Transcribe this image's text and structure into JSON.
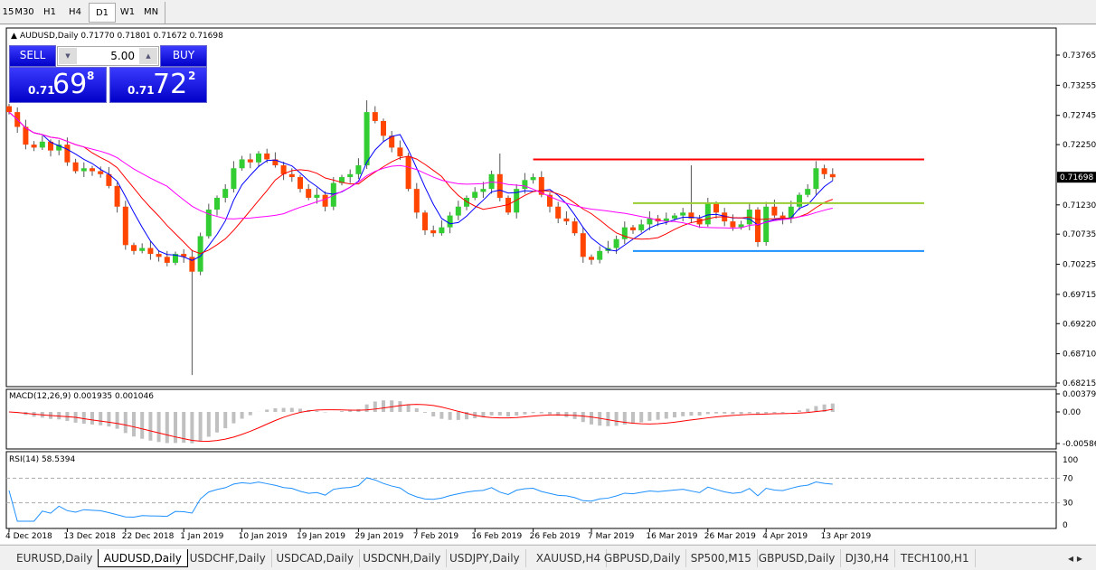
{
  "timeframes": [
    "15",
    "M30",
    "H1",
    "H4",
    "D1",
    "W1",
    "MN"
  ],
  "active_timeframe": "D1",
  "chart": {
    "title": "AUDUSD,Daily",
    "ohlc": "0.71770 0.71801 0.71672 0.71698",
    "current_price": "0.71698"
  },
  "trade_panel": {
    "sell_label": "SELL",
    "buy_label": "BUY",
    "lot": "5.00",
    "sell_small": "0.71",
    "sell_main": "69",
    "sell_pip": "8",
    "buy_small": "0.71",
    "buy_main": "72",
    "buy_pip": "2"
  },
  "macd": {
    "label": "MACD(12,26,9) 0.001935 0.001046",
    "ticks": [
      "0.003793",
      "0.00",
      "-0.005864"
    ]
  },
  "rsi": {
    "label": "RSI(14) 58.5394",
    "ticks": [
      "100",
      "70",
      "30",
      "0"
    ]
  },
  "price_ticks": [
    "0.73765",
    "0.73255",
    "0.72745",
    "0.72250",
    "0.71230",
    "0.70735",
    "0.70225",
    "0.69715",
    "0.69220",
    "0.68710",
    "0.68215"
  ],
  "date_labels": [
    {
      "i": 0,
      "t": "4 Dec 2018"
    },
    {
      "i": 7,
      "t": "13 Dec 2018"
    },
    {
      "i": 14,
      "t": "22 Dec 2018"
    },
    {
      "i": 21,
      "t": "1 Jan 2019"
    },
    {
      "i": 28,
      "t": "10 Jan 2019"
    },
    {
      "i": 35,
      "t": "19 Jan 2019"
    },
    {
      "i": 42,
      "t": "29 Jan 2019"
    },
    {
      "i": 49,
      "t": "7 Feb 2019"
    },
    {
      "i": 56,
      "t": "16 Feb 2019"
    },
    {
      "i": 63,
      "t": "26 Feb 2019"
    },
    {
      "i": 70,
      "t": "7 Mar 2019"
    },
    {
      "i": 77,
      "t": "16 Mar 2019"
    },
    {
      "i": 84,
      "t": "26 Mar 2019"
    },
    {
      "i": 91,
      "t": "4 Apr 2019"
    },
    {
      "i": 98,
      "t": "13 Apr 2019"
    }
  ],
  "chart_data": {
    "type": "candlestick",
    "ylim": [
      0.68215,
      0.73765
    ],
    "closes": [
      0.728,
      0.7255,
      0.7225,
      0.722,
      0.723,
      0.7215,
      0.7225,
      0.7195,
      0.718,
      0.7185,
      0.718,
      0.7175,
      0.7155,
      0.712,
      0.7055,
      0.7045,
      0.705,
      0.704,
      0.7035,
      0.7025,
      0.704,
      0.7035,
      0.701,
      0.707,
      0.7115,
      0.7135,
      0.715,
      0.7185,
      0.72,
      0.7195,
      0.721,
      0.72,
      0.719,
      0.7175,
      0.717,
      0.715,
      0.7135,
      0.714,
      0.712,
      0.716,
      0.717,
      0.7175,
      0.719,
      0.728,
      0.7265,
      0.724,
      0.722,
      0.7205,
      0.715,
      0.711,
      0.708,
      0.7075,
      0.7085,
      0.7105,
      0.712,
      0.7135,
      0.7145,
      0.715,
      0.7175,
      0.7135,
      0.711,
      0.715,
      0.7165,
      0.717,
      0.714,
      0.712,
      0.71,
      0.7095,
      0.7075,
      0.7035,
      0.703,
      0.7045,
      0.705,
      0.7065,
      0.7085,
      0.708,
      0.709,
      0.71,
      0.7095,
      0.71,
      0.7105,
      0.711,
      0.71,
      0.709,
      0.7125,
      0.711,
      0.7095,
      0.7085,
      0.709,
      0.7115,
      0.706,
      0.712,
      0.7105,
      0.71,
      0.712,
      0.714,
      0.715,
      0.7185,
      0.7175,
      0.71698
    ],
    "moving_averages": [
      {
        "period": 5,
        "color": "#0000ff"
      },
      {
        "period": 10,
        "color": "#ff0000"
      },
      {
        "period": 20,
        "color": "#ff00ff"
      }
    ],
    "hlines": [
      {
        "price": 0.72,
        "from_bar": 63,
        "to_bar": 110,
        "color": "#ff0000"
      },
      {
        "price": 0.7126,
        "from_bar": 75,
        "to_bar": 110,
        "color": "#9acd32"
      },
      {
        "price": 0.7045,
        "from_bar": 75,
        "to_bar": 110,
        "color": "#1e90ff"
      }
    ],
    "colors": {
      "bull": "#32cd32",
      "bear": "#ff4500"
    }
  },
  "bottom_tabs": [
    "EURUSD,Daily",
    "AUDUSD,Daily",
    "USDCHF,Daily",
    "USDCAD,Daily",
    "USDCNH,Daily",
    "USDJPY,Daily",
    "XAUUSD,H4",
    "GBPUSD,Daily",
    "SP500,M15",
    "GBPUSD,Daily",
    "DJ30,H4",
    "TECH100,H1"
  ],
  "active_tab": "AUDUSD,Daily"
}
